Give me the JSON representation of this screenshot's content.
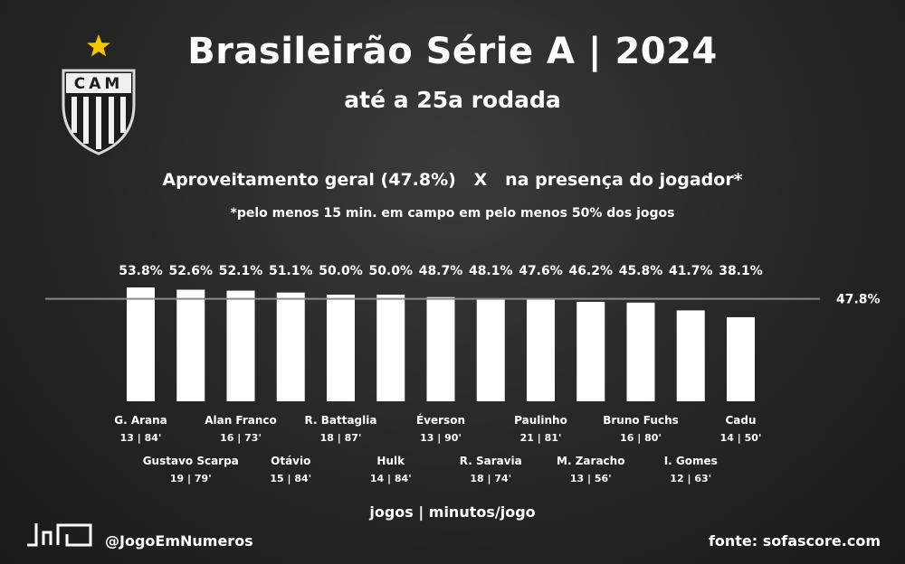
{
  "header": {
    "title": "Brasileirão Série A | 2024",
    "subtitle": "até a 25a rodada",
    "heading": "Aproveitamento geral (47.8%)   X   na presença do jogador*",
    "subheading": "*pelo menos 15 min. em campo em pelo menos 50% dos jogos"
  },
  "logo": {
    "text": "CAM",
    "icon": "star-icon",
    "star_color": "#f2c700"
  },
  "footer": {
    "handle": "@JogoEmNumeros",
    "source": "fonte: sofascore.com",
    "axis_note": "jogos | minutos/jogo"
  },
  "chart_data": {
    "type": "bar",
    "categories": [
      "G. Arana",
      "Gustavo Scarpa",
      "Alan Franco",
      "Otávio",
      "R. Battaglia",
      "Hulk",
      "Éverson",
      "R. Saravia",
      "Paulinho",
      "M. Zaracho",
      "Bruno Fuchs",
      "I. Gomes",
      "Cadu"
    ],
    "sublabels": [
      "13 | 84'",
      "19 | 79'",
      "16 | 73'",
      "15 | 84'",
      "18 | 87'",
      "14 | 84'",
      "13 | 90'",
      "18 | 74'",
      "21 | 81'",
      "13 | 56'",
      "16 | 80'",
      "12 | 63'",
      "14 | 50'"
    ],
    "values": [
      53.8,
      52.6,
      52.1,
      51.1,
      50.0,
      50.0,
      48.7,
      48.1,
      47.6,
      46.2,
      45.8,
      41.7,
      38.1
    ],
    "value_labels": [
      "53.8%",
      "52.6%",
      "52.1%",
      "51.1%",
      "50.0%",
      "50.0%",
      "48.7%",
      "48.1%",
      "47.6%",
      "46.2%",
      "45.8%",
      "41.7%",
      "38.1%"
    ],
    "reference_value": 47.8,
    "reference_label": "47.8%",
    "bar_color": "#ffffff",
    "reference_line_color": "#8a8a8a",
    "grid": false,
    "legend": "none"
  }
}
